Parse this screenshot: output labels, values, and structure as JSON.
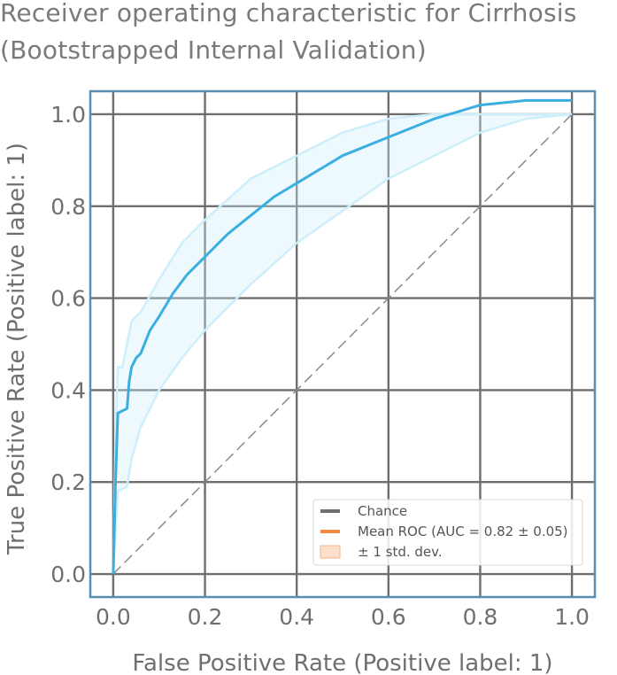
{
  "chart_data": {
    "type": "line",
    "title": "Receiver operating characteristic for Cirrhosis",
    "subtitle": "(Bootstrapped Internal Validation)",
    "xlabel": "False Positive Rate (Positive label: 1)",
    "ylabel": "True Positive Rate (Positive label: 1)",
    "xlim": [
      -0.05,
      1.05
    ],
    "ylim": [
      -0.05,
      1.05
    ],
    "xticks": [
      "0.0",
      "0.2",
      "0.4",
      "0.6",
      "0.8",
      "1.0"
    ],
    "yticks": [
      "0.0",
      "0.2",
      "0.4",
      "0.6",
      "0.8",
      "1.0"
    ],
    "grid": true,
    "legend": {
      "placement": "lower-right",
      "entries": [
        "Chance",
        "Mean ROC (AUC = 0.82 ± 0.05)",
        "± 1 std. dev."
      ]
    },
    "series": [
      {
        "name": "Chance",
        "style": "dashed",
        "color": "#8a8a8a",
        "x": [
          0,
          1
        ],
        "y": [
          0,
          1
        ]
      },
      {
        "name": "Mean ROC (AUC = 0.82 ± 0.05)",
        "style": "solid",
        "color": "#3aafe0",
        "x": [
          0,
          0.005,
          0.01,
          0.03,
          0.035,
          0.04,
          0.05,
          0.06,
          0.08,
          0.1,
          0.13,
          0.16,
          0.2,
          0.25,
          0.3,
          0.35,
          0.4,
          0.5,
          0.6,
          0.7,
          0.8,
          0.9,
          1.0
        ],
        "y": [
          0,
          0.2,
          0.35,
          0.36,
          0.42,
          0.45,
          0.47,
          0.48,
          0.53,
          0.56,
          0.61,
          0.65,
          0.69,
          0.74,
          0.78,
          0.82,
          0.85,
          0.91,
          0.95,
          0.99,
          1.02,
          1.03,
          1.03
        ]
      },
      {
        "name": "± 1 std. dev. upper",
        "style": "band",
        "color": "#cdeefb",
        "x": [
          0,
          0.005,
          0.01,
          0.02,
          0.03,
          0.04,
          0.06,
          0.1,
          0.15,
          0.2,
          0.3,
          0.4,
          0.5,
          0.6,
          0.7,
          0.8,
          0.9,
          1.0
        ],
        "y": [
          0,
          0.3,
          0.45,
          0.45,
          0.5,
          0.55,
          0.57,
          0.64,
          0.72,
          0.77,
          0.86,
          0.91,
          0.96,
          0.99,
          1.0,
          1.0,
          1.0,
          1.0
        ]
      },
      {
        "name": "± 1 std. dev. lower",
        "style": "band",
        "color": "#cdeefb",
        "x": [
          0,
          0.005,
          0.01,
          0.03,
          0.04,
          0.06,
          0.1,
          0.15,
          0.2,
          0.3,
          0.4,
          0.5,
          0.6,
          0.7,
          0.8,
          0.9,
          1.0
        ],
        "y": [
          0,
          0.1,
          0.18,
          0.19,
          0.25,
          0.32,
          0.4,
          0.47,
          0.53,
          0.63,
          0.72,
          0.79,
          0.86,
          0.91,
          0.96,
          0.99,
          1.0
        ]
      }
    ]
  },
  "colors": {
    "axes_frame": "#5b8db0",
    "grid": "#6e6e6e",
    "mean_roc": "#3aafe0",
    "std_band": "#cdeefb",
    "chance": "#8a8a8a",
    "legend_mean_swatch": "#f08a44",
    "legend_band_swatch": "#fde0cc"
  }
}
